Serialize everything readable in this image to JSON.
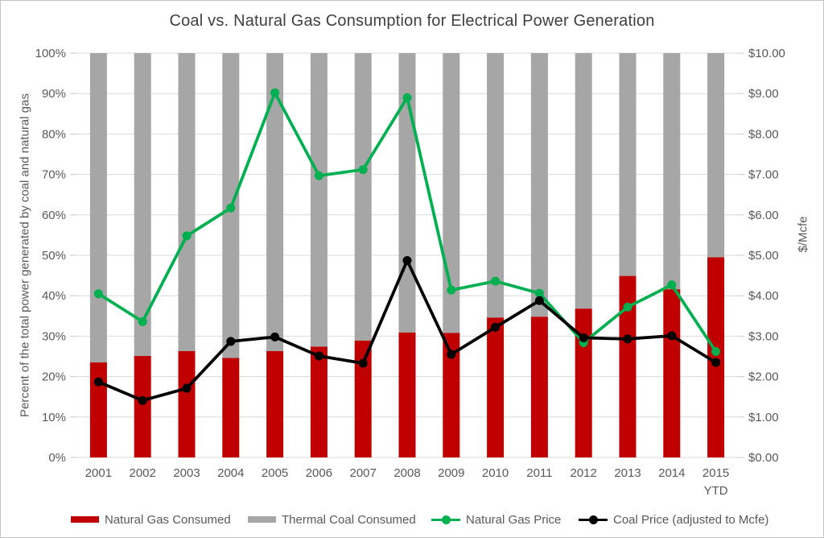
{
  "title": "Coal vs. Natural Gas Consumption for Electrical Power Generation",
  "chart_data": {
    "type": "combo (100% stacked bar + line)",
    "title": "Coal vs. Natural Gas Consumption for Electrical Power Generation",
    "categories": [
      "2001",
      "2002",
      "2003",
      "2004",
      "2005",
      "2006",
      "2007",
      "2008",
      "2009",
      "2010",
      "2011",
      "2012",
      "2013",
      "2014",
      "2015 YTD"
    ],
    "stacked_to_100_percent": true,
    "grid": "horizontal",
    "legend_position": "bottom",
    "left_axis": {
      "title": "Percent of the total power generated by coal and natural gas",
      "min": 0,
      "max": 100,
      "step": 10,
      "format": "percent"
    },
    "right_axis": {
      "title": "$/Mcfe",
      "min": 0,
      "max": 10,
      "step": 1,
      "format": "dollars"
    },
    "bar_series": [
      {
        "name": "Natural Gas Consumed",
        "color": "#C00000",
        "axis": "left",
        "values": [
          23.5,
          25.1,
          26.3,
          24.6,
          26.3,
          27.4,
          28.9,
          30.9,
          30.8,
          34.6,
          34.8,
          36.8,
          44.9,
          41.6,
          49.5
        ]
      },
      {
        "name": "Thermal Coal Consumed",
        "color": "#A6A6A6",
        "axis": "left",
        "values": [
          76.5,
          74.9,
          73.7,
          75.4,
          73.7,
          72.6,
          71.1,
          69.1,
          69.2,
          65.4,
          65.2,
          63.2,
          55.1,
          58.4,
          50.5
        ]
      }
    ],
    "line_series": [
      {
        "name": "Natural Gas Price",
        "color": "#00B050",
        "axis": "right",
        "values": [
          4.05,
          3.36,
          5.48,
          6.17,
          9.02,
          6.97,
          7.12,
          8.9,
          4.14,
          4.36,
          4.06,
          2.84,
          3.72,
          4.27,
          2.62
        ]
      },
      {
        "name": "Coal Price (adjusted to Mcfe)",
        "color": "#000000",
        "axis": "right",
        "values": [
          1.87,
          1.41,
          1.71,
          2.87,
          2.98,
          2.51,
          2.33,
          4.87,
          2.55,
          3.22,
          3.88,
          2.96,
          2.93,
          3.01,
          2.35
        ]
      }
    ],
    "colors": {
      "gridline": "#D9D9D9",
      "tick": "#C9C9C9",
      "axis_text": "#595959",
      "title_text": "#404040"
    }
  }
}
